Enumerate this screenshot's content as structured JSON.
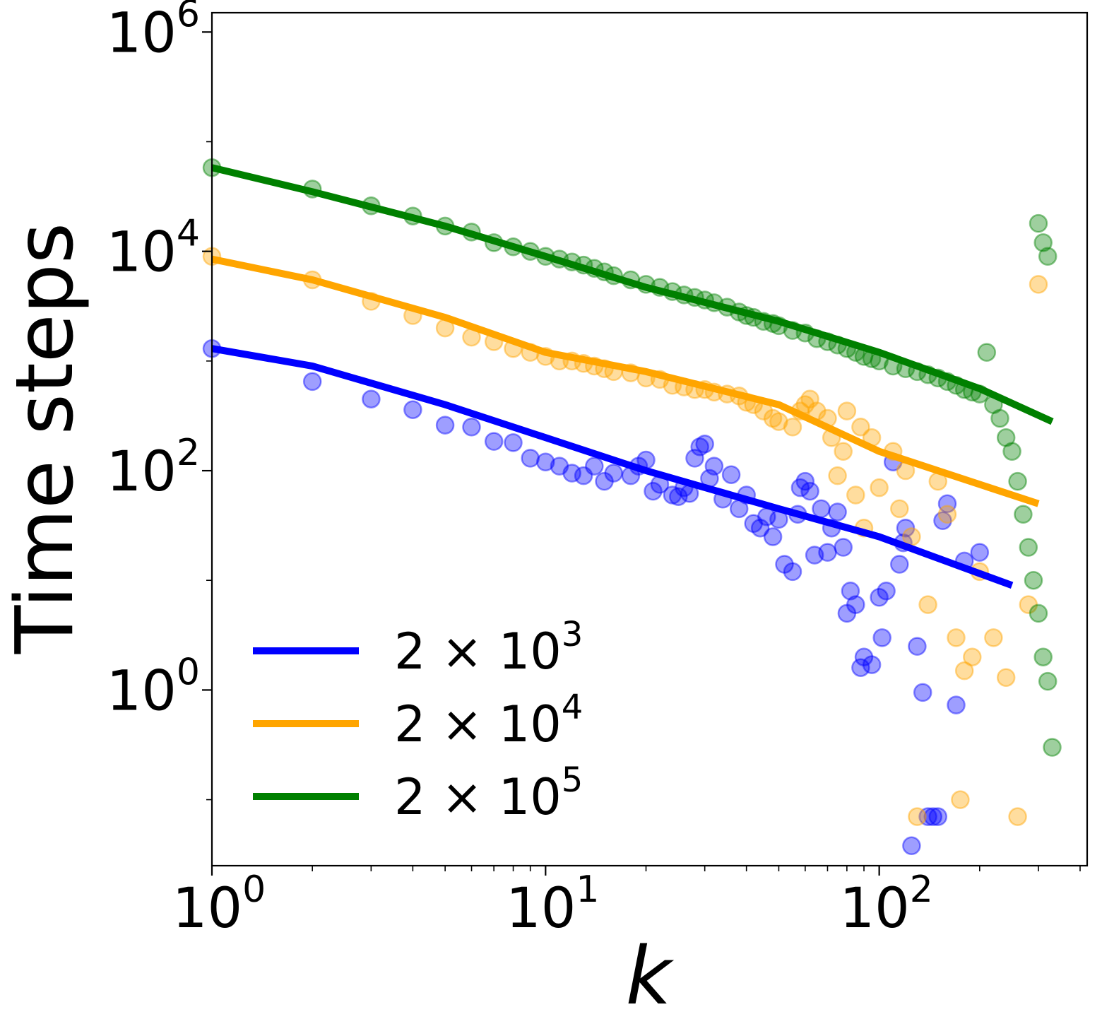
{
  "chart_data": {
    "type": "scatter",
    "title": "",
    "xlabel": "k",
    "ylabel": "Time steps",
    "xscale": "log",
    "yscale": "log",
    "xlim": [
      1,
      420
    ],
    "ylim": [
      0.025,
      1500000
    ],
    "grid": false,
    "x_ticks": [
      {
        "base": "10",
        "exp": "0",
        "value": 1
      },
      {
        "base": "10",
        "exp": "1",
        "value": 10
      },
      {
        "base": "10",
        "exp": "2",
        "value": 100
      }
    ],
    "y_ticks": [
      {
        "base": "10",
        "exp": "0",
        "value": 1
      },
      {
        "base": "10",
        "exp": "2",
        "value": 100
      },
      {
        "base": "10",
        "exp": "4",
        "value": 10000
      },
      {
        "base": "10",
        "exp": "6",
        "value": 1000000
      }
    ],
    "legend_position": "lower-left",
    "series": [
      {
        "name": "2 × 10^3",
        "legend_base": "2 × 10",
        "legend_exp": "3",
        "color": "#0000ff",
        "fit_line": [
          [
            1,
            1300
          ],
          [
            2,
            900
          ],
          [
            5,
            400
          ],
          [
            10,
            200
          ],
          [
            20,
            100
          ],
          [
            50,
            45
          ],
          [
            100,
            25
          ],
          [
            250,
            9
          ]
        ],
        "points": [
          [
            1,
            1300
          ],
          [
            2,
            650
          ],
          [
            3,
            450
          ],
          [
            4,
            360
          ],
          [
            5,
            260
          ],
          [
            6,
            250
          ],
          [
            7,
            185
          ],
          [
            8,
            180
          ],
          [
            9,
            130
          ],
          [
            10,
            120
          ],
          [
            11,
            110
          ],
          [
            12,
            95
          ],
          [
            13,
            90
          ],
          [
            14,
            110
          ],
          [
            15,
            80
          ],
          [
            16,
            95
          ],
          [
            18,
            90
          ],
          [
            19,
            110
          ],
          [
            20,
            125
          ],
          [
            21,
            65
          ],
          [
            22,
            75
          ],
          [
            24,
            60
          ],
          [
            25,
            58
          ],
          [
            26,
            70
          ],
          [
            27,
            62
          ],
          [
            28,
            130
          ],
          [
            29,
            165
          ],
          [
            30,
            175
          ],
          [
            31,
            85
          ],
          [
            32,
            110
          ],
          [
            34,
            55
          ],
          [
            36,
            92
          ],
          [
            38,
            45
          ],
          [
            40,
            60
          ],
          [
            42,
            33
          ],
          [
            44,
            30
          ],
          [
            46,
            38
          ],
          [
            48,
            25
          ],
          [
            50,
            36
          ],
          [
            52,
            14
          ],
          [
            55,
            12
          ],
          [
            57,
            40
          ],
          [
            58,
            70
          ],
          [
            60,
            80
          ],
          [
            62,
            65
          ],
          [
            64,
            17
          ],
          [
            67,
            45
          ],
          [
            70,
            18
          ],
          [
            72,
            30
          ],
          [
            75,
            42
          ],
          [
            78,
            20
          ],
          [
            80,
            5
          ],
          [
            82,
            8
          ],
          [
            85,
            6
          ],
          [
            88,
            1.6
          ],
          [
            90,
            2
          ],
          [
            95,
            1.7
          ],
          [
            100,
            7
          ],
          [
            102,
            3
          ],
          [
            105,
            8
          ],
          [
            110,
            120
          ],
          [
            115,
            14
          ],
          [
            118,
            22
          ],
          [
            120,
            30
          ],
          [
            125,
            0.038
          ],
          [
            130,
            2.5
          ],
          [
            135,
            0.95
          ],
          [
            140,
            0.07
          ],
          [
            145,
            0.07
          ],
          [
            150,
            0.07
          ],
          [
            155,
            35
          ],
          [
            160,
            50
          ],
          [
            170,
            0.73
          ],
          [
            180,
            15
          ],
          [
            200,
            18
          ]
        ]
      },
      {
        "name": "2 × 10^4",
        "legend_base": "2 × 10",
        "legend_exp": "4",
        "color": "#ffa500",
        "fit_line": [
          [
            1,
            8500
          ],
          [
            2,
            5500
          ],
          [
            5,
            2500
          ],
          [
            10,
            1200
          ],
          [
            20,
            800
          ],
          [
            50,
            400
          ],
          [
            100,
            150
          ],
          [
            300,
            50
          ]
        ],
        "points": [
          [
            1,
            9000
          ],
          [
            2,
            5500
          ],
          [
            3,
            3500
          ],
          [
            4,
            2600
          ],
          [
            5,
            2000
          ],
          [
            6,
            1650
          ],
          [
            7,
            1500
          ],
          [
            8,
            1300
          ],
          [
            9,
            1200
          ],
          [
            10,
            1100
          ],
          [
            11,
            1000
          ],
          [
            12,
            1000
          ],
          [
            13,
            950
          ],
          [
            14,
            900
          ],
          [
            15,
            850
          ],
          [
            16,
            800
          ],
          [
            18,
            780
          ],
          [
            20,
            700
          ],
          [
            22,
            680
          ],
          [
            24,
            600
          ],
          [
            26,
            580
          ],
          [
            28,
            550
          ],
          [
            30,
            550
          ],
          [
            32,
            520
          ],
          [
            35,
            500
          ],
          [
            38,
            480
          ],
          [
            40,
            420
          ],
          [
            42,
            400
          ],
          [
            45,
            350
          ],
          [
            48,
            300
          ],
          [
            50,
            280
          ],
          [
            55,
            250
          ],
          [
            58,
            350
          ],
          [
            60,
            400
          ],
          [
            62,
            450
          ],
          [
            65,
            350
          ],
          [
            70,
            300
          ],
          [
            72,
            200
          ],
          [
            75,
            90
          ],
          [
            78,
            150
          ],
          [
            80,
            350
          ],
          [
            85,
            60
          ],
          [
            88,
            250
          ],
          [
            90,
            30
          ],
          [
            95,
            200
          ],
          [
            100,
            70
          ],
          [
            110,
            150
          ],
          [
            115,
            45
          ],
          [
            120,
            100
          ],
          [
            125,
            25
          ],
          [
            130,
            0.07
          ],
          [
            140,
            6
          ],
          [
            150,
            80
          ],
          [
            160,
            40
          ],
          [
            170,
            3
          ],
          [
            175,
            0.1
          ],
          [
            180,
            1.5
          ],
          [
            190,
            2
          ],
          [
            200,
            12
          ],
          [
            220,
            3
          ],
          [
            240,
            1.3
          ],
          [
            260,
            0.07
          ],
          [
            280,
            6
          ],
          [
            300,
            5000
          ]
        ]
      },
      {
        "name": "2 × 10^5",
        "legend_base": "2 × 10",
        "legend_exp": "5",
        "color": "#008000",
        "fit_line": [
          [
            1,
            58000
          ],
          [
            2,
            35000
          ],
          [
            5,
            17000
          ],
          [
            10,
            9000
          ],
          [
            20,
            4700
          ],
          [
            50,
            2300
          ],
          [
            100,
            1200
          ],
          [
            200,
            560
          ],
          [
            330,
            280
          ]
        ],
        "points": [
          [
            1,
            58000
          ],
          [
            2,
            37000
          ],
          [
            3,
            26000
          ],
          [
            4,
            21000
          ],
          [
            5,
            17000
          ],
          [
            6,
            15000
          ],
          [
            7,
            12000
          ],
          [
            8,
            11000
          ],
          [
            9,
            10000
          ],
          [
            10,
            9000
          ],
          [
            11,
            8500
          ],
          [
            12,
            8000
          ],
          [
            13,
            7500
          ],
          [
            14,
            7000
          ],
          [
            15,
            6500
          ],
          [
            16,
            6000
          ],
          [
            18,
            5500
          ],
          [
            20,
            5000
          ],
          [
            22,
            4700
          ],
          [
            24,
            4300
          ],
          [
            26,
            4000
          ],
          [
            28,
            3800
          ],
          [
            30,
            3600
          ],
          [
            32,
            3400
          ],
          [
            35,
            3100
          ],
          [
            38,
            2800
          ],
          [
            40,
            2600
          ],
          [
            42,
            2500
          ],
          [
            45,
            2300
          ],
          [
            48,
            2200
          ],
          [
            50,
            2100
          ],
          [
            55,
            1900
          ],
          [
            60,
            1800
          ],
          [
            65,
            1600
          ],
          [
            70,
            1500
          ],
          [
            75,
            1400
          ],
          [
            80,
            1300
          ],
          [
            85,
            1200
          ],
          [
            90,
            1100
          ],
          [
            95,
            1050
          ],
          [
            100,
            1000
          ],
          [
            110,
            900
          ],
          [
            120,
            850
          ],
          [
            130,
            800
          ],
          [
            140,
            750
          ],
          [
            150,
            700
          ],
          [
            160,
            650
          ],
          [
            170,
            600
          ],
          [
            180,
            550
          ],
          [
            190,
            520
          ],
          [
            200,
            500
          ],
          [
            210,
            1200
          ],
          [
            220,
            400
          ],
          [
            230,
            300
          ],
          [
            240,
            200
          ],
          [
            250,
            150
          ],
          [
            260,
            80
          ],
          [
            270,
            40
          ],
          [
            280,
            20
          ],
          [
            290,
            10
          ],
          [
            300,
            5
          ],
          [
            310,
            2
          ],
          [
            320,
            1.2
          ],
          [
            330,
            0.3
          ],
          [
            300,
            18000
          ],
          [
            310,
            12000
          ],
          [
            320,
            9000
          ]
        ]
      }
    ]
  }
}
